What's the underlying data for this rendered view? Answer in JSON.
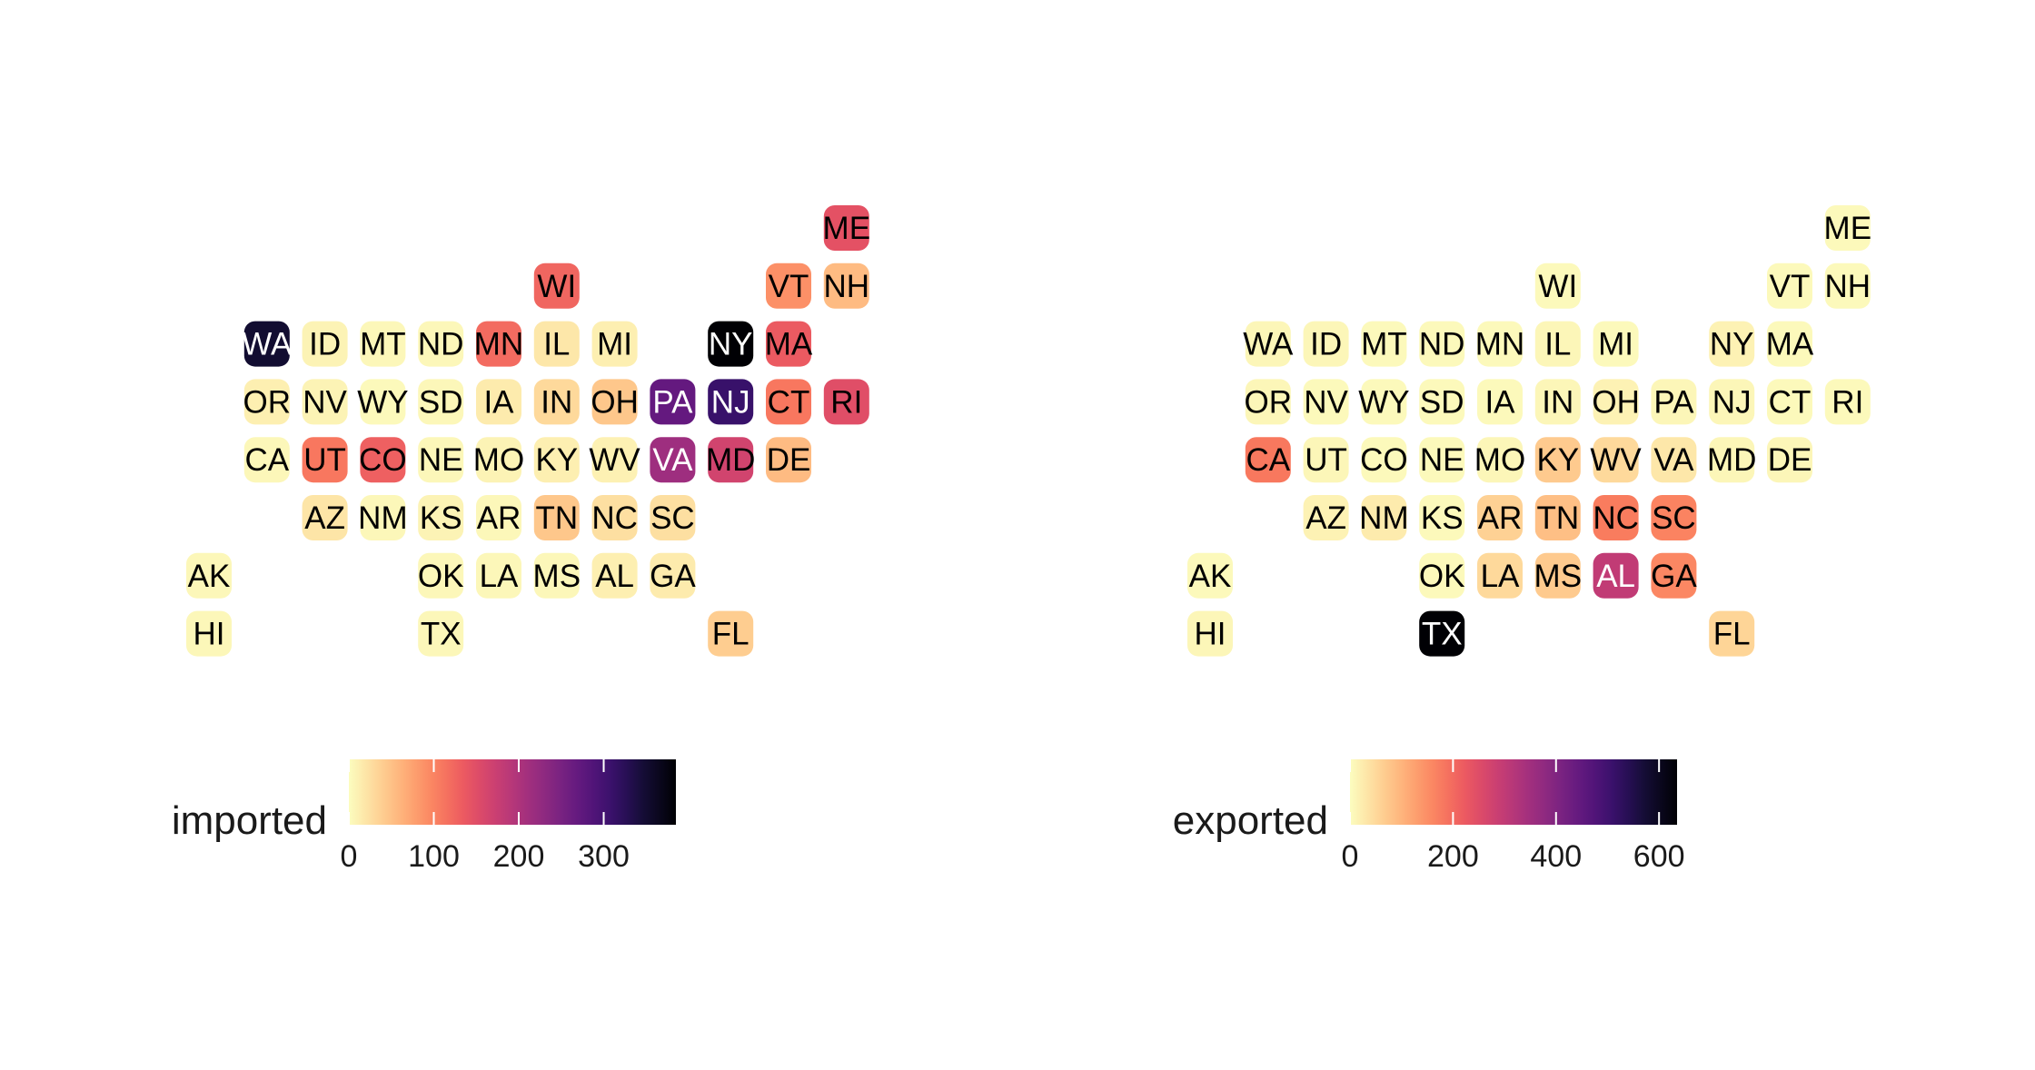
{
  "chart_data": [
    {
      "type": "heatmap",
      "subtype": "geofacet-tile-grid",
      "title": "",
      "legend": {
        "title": "imported",
        "placement": "bottom",
        "range": [
          0,
          385
        ],
        "ticks": [
          0,
          100,
          200,
          300
        ],
        "tick_labels": [
          "0",
          "100",
          "200",
          "300"
        ]
      },
      "tiles": [
        {
          "state": "ME",
          "col": 11,
          "row": 0,
          "value": 145
        },
        {
          "state": "WI",
          "col": 6,
          "row": 1,
          "value": 125
        },
        {
          "state": "VT",
          "col": 10,
          "row": 1,
          "value": 90
        },
        {
          "state": "NH",
          "col": 11,
          "row": 1,
          "value": 55
        },
        {
          "state": "WA",
          "col": 1,
          "row": 2,
          "value": 350
        },
        {
          "state": "ID",
          "col": 2,
          "row": 2,
          "value": 8
        },
        {
          "state": "MT",
          "col": 3,
          "row": 2,
          "value": 5
        },
        {
          "state": "ND",
          "col": 4,
          "row": 2,
          "value": 5
        },
        {
          "state": "MN",
          "col": 5,
          "row": 2,
          "value": 120
        },
        {
          "state": "IL",
          "col": 6,
          "row": 2,
          "value": 18
        },
        {
          "state": "MI",
          "col": 7,
          "row": 2,
          "value": 12
        },
        {
          "state": "NY",
          "col": 9,
          "row": 2,
          "value": 385
        },
        {
          "state": "MA",
          "col": 10,
          "row": 2,
          "value": 135
        },
        {
          "state": "OR",
          "col": 1,
          "row": 3,
          "value": 12
        },
        {
          "state": "NV",
          "col": 2,
          "row": 3,
          "value": 8
        },
        {
          "state": "WY",
          "col": 3,
          "row": 3,
          "value": 3
        },
        {
          "state": "SD",
          "col": 4,
          "row": 3,
          "value": 5
        },
        {
          "state": "IA",
          "col": 5,
          "row": 3,
          "value": 15
        },
        {
          "state": "IN",
          "col": 6,
          "row": 3,
          "value": 30
        },
        {
          "state": "OH",
          "col": 7,
          "row": 3,
          "value": 45
        },
        {
          "state": "PA",
          "col": 8,
          "row": 3,
          "value": 270
        },
        {
          "state": "NJ",
          "col": 9,
          "row": 3,
          "value": 310
        },
        {
          "state": "CT",
          "col": 10,
          "row": 3,
          "value": 110
        },
        {
          "state": "RI",
          "col": 11,
          "row": 3,
          "value": 150
        },
        {
          "state": "CA",
          "col": 1,
          "row": 4,
          "value": 5
        },
        {
          "state": "UT",
          "col": 2,
          "row": 4,
          "value": 110
        },
        {
          "state": "CO",
          "col": 3,
          "row": 4,
          "value": 130
        },
        {
          "state": "NE",
          "col": 4,
          "row": 4,
          "value": 5
        },
        {
          "state": "MO",
          "col": 5,
          "row": 4,
          "value": 8
        },
        {
          "state": "KY",
          "col": 6,
          "row": 4,
          "value": 12
        },
        {
          "state": "WV",
          "col": 7,
          "row": 4,
          "value": 10
        },
        {
          "state": "VA",
          "col": 8,
          "row": 4,
          "value": 215
        },
        {
          "state": "MD",
          "col": 9,
          "row": 4,
          "value": 165
        },
        {
          "state": "DE",
          "col": 10,
          "row": 4,
          "value": 55
        },
        {
          "state": "AZ",
          "col": 2,
          "row": 5,
          "value": 20
        },
        {
          "state": "NM",
          "col": 3,
          "row": 5,
          "value": 5
        },
        {
          "state": "KS",
          "col": 4,
          "row": 5,
          "value": 8
        },
        {
          "state": "AR",
          "col": 5,
          "row": 5,
          "value": 5
        },
        {
          "state": "TN",
          "col": 6,
          "row": 5,
          "value": 45
        },
        {
          "state": "NC",
          "col": 7,
          "row": 5,
          "value": 25
        },
        {
          "state": "SC",
          "col": 8,
          "row": 5,
          "value": 25
        },
        {
          "state": "AK",
          "col": 0,
          "row": 6,
          "value": 5
        },
        {
          "state": "OK",
          "col": 4,
          "row": 6,
          "value": 5
        },
        {
          "state": "LA",
          "col": 5,
          "row": 6,
          "value": 5
        },
        {
          "state": "MS",
          "col": 6,
          "row": 6,
          "value": 5
        },
        {
          "state": "AL",
          "col": 7,
          "row": 6,
          "value": 12
        },
        {
          "state": "GA",
          "col": 8,
          "row": 6,
          "value": 15
        },
        {
          "state": "HI",
          "col": 0,
          "row": 7,
          "value": 5
        },
        {
          "state": "TX",
          "col": 4,
          "row": 7,
          "value": 5
        },
        {
          "state": "FL",
          "col": 9,
          "row": 7,
          "value": 40
        }
      ]
    },
    {
      "type": "heatmap",
      "subtype": "geofacet-tile-grid",
      "title": "",
      "legend": {
        "title": "exported",
        "placement": "bottom",
        "range": [
          0,
          635
        ],
        "ticks": [
          0,
          200,
          400,
          600
        ],
        "tick_labels": [
          "0",
          "200",
          "400",
          "600"
        ]
      },
      "tiles": [
        {
          "state": "ME",
          "col": 11,
          "row": 0,
          "value": 5
        },
        {
          "state": "WI",
          "col": 6,
          "row": 1,
          "value": 5
        },
        {
          "state": "VT",
          "col": 10,
          "row": 1,
          "value": 5
        },
        {
          "state": "NH",
          "col": 11,
          "row": 1,
          "value": 5
        },
        {
          "state": "WA",
          "col": 1,
          "row": 2,
          "value": 10
        },
        {
          "state": "ID",
          "col": 2,
          "row": 2,
          "value": 10
        },
        {
          "state": "MT",
          "col": 3,
          "row": 2,
          "value": 5
        },
        {
          "state": "ND",
          "col": 4,
          "row": 2,
          "value": 5
        },
        {
          "state": "MN",
          "col": 5,
          "row": 2,
          "value": 5
        },
        {
          "state": "IL",
          "col": 6,
          "row": 2,
          "value": 10
        },
        {
          "state": "MI",
          "col": 7,
          "row": 2,
          "value": 5
        },
        {
          "state": "NY",
          "col": 9,
          "row": 2,
          "value": 15
        },
        {
          "state": "MA",
          "col": 10,
          "row": 2,
          "value": 5
        },
        {
          "state": "OR",
          "col": 1,
          "row": 3,
          "value": 10
        },
        {
          "state": "NV",
          "col": 2,
          "row": 3,
          "value": 5
        },
        {
          "state": "WY",
          "col": 3,
          "row": 3,
          "value": 5
        },
        {
          "state": "SD",
          "col": 4,
          "row": 3,
          "value": 5
        },
        {
          "state": "IA",
          "col": 5,
          "row": 3,
          "value": 5
        },
        {
          "state": "IN",
          "col": 6,
          "row": 3,
          "value": 10
        },
        {
          "state": "OH",
          "col": 7,
          "row": 3,
          "value": 15
        },
        {
          "state": "PA",
          "col": 8,
          "row": 3,
          "value": 10
        },
        {
          "state": "NJ",
          "col": 9,
          "row": 3,
          "value": 10
        },
        {
          "state": "CT",
          "col": 10,
          "row": 3,
          "value": 5
        },
        {
          "state": "RI",
          "col": 11,
          "row": 3,
          "value": 5
        },
        {
          "state": "CA",
          "col": 1,
          "row": 4,
          "value": 180
        },
        {
          "state": "UT",
          "col": 2,
          "row": 4,
          "value": 10
        },
        {
          "state": "CO",
          "col": 3,
          "row": 4,
          "value": 5
        },
        {
          "state": "NE",
          "col": 4,
          "row": 4,
          "value": 5
        },
        {
          "state": "MO",
          "col": 5,
          "row": 4,
          "value": 10
        },
        {
          "state": "KY",
          "col": 6,
          "row": 4,
          "value": 70
        },
        {
          "state": "WV",
          "col": 7,
          "row": 4,
          "value": 50
        },
        {
          "state": "VA",
          "col": 8,
          "row": 4,
          "value": 30
        },
        {
          "state": "MD",
          "col": 9,
          "row": 4,
          "value": 10
        },
        {
          "state": "DE",
          "col": 10,
          "row": 4,
          "value": 10
        },
        {
          "state": "AZ",
          "col": 2,
          "row": 5,
          "value": 15
        },
        {
          "state": "NM",
          "col": 3,
          "row": 5,
          "value": 25
        },
        {
          "state": "KS",
          "col": 4,
          "row": 5,
          "value": 5
        },
        {
          "state": "AR",
          "col": 5,
          "row": 5,
          "value": 60
        },
        {
          "state": "TN",
          "col": 6,
          "row": 5,
          "value": 85
        },
        {
          "state": "NC",
          "col": 7,
          "row": 5,
          "value": 175
        },
        {
          "state": "SC",
          "col": 8,
          "row": 5,
          "value": 165
        },
        {
          "state": "AK",
          "col": 0,
          "row": 6,
          "value": 5
        },
        {
          "state": "OK",
          "col": 4,
          "row": 6,
          "value": 5
        },
        {
          "state": "LA",
          "col": 5,
          "row": 6,
          "value": 50
        },
        {
          "state": "MS",
          "col": 6,
          "row": 6,
          "value": 70
        },
        {
          "state": "AL",
          "col": 7,
          "row": 6,
          "value": 300
        },
        {
          "state": "GA",
          "col": 8,
          "row": 6,
          "value": 160
        },
        {
          "state": "HI",
          "col": 0,
          "row": 7,
          "value": 10
        },
        {
          "state": "TX",
          "col": 4,
          "row": 7,
          "value": 635
        },
        {
          "state": "FL",
          "col": 9,
          "row": 7,
          "value": 55
        }
      ]
    }
  ]
}
